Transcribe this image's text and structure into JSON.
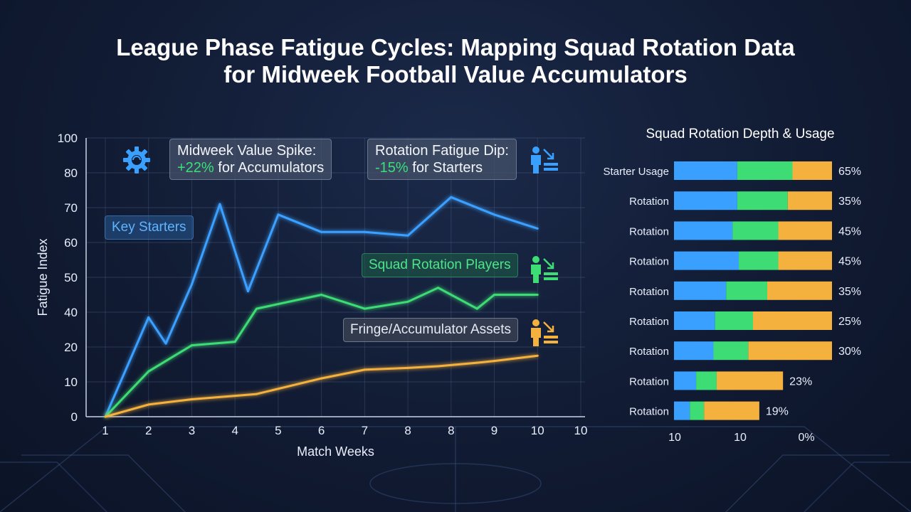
{
  "title_line1": "League Phase Fatigue Cycles: Mapping Squad Rotation Data",
  "title_line2": "for Midweek Football Value Accumulators",
  "colors": {
    "starters": "#3aa0ff",
    "rotation": "#3ddc74",
    "fringe": "#f5b13d",
    "background": "#111b33"
  },
  "callouts": {
    "spike_line1": "Midweek Value Spike:",
    "spike_value": "+22%",
    "spike_rest": " for Accumulators",
    "dip_line1": "Rotation Fatigue Dip:",
    "dip_value": "-15%",
    "dip_rest": " for Starters"
  },
  "icons": {
    "gear": "gear-icon",
    "starter_player": "player-down-arrow-icon",
    "rotation_player": "player-down-arrow-icon",
    "fringe_player": "player-down-arrow-icon"
  },
  "chart_data": [
    {
      "type": "line",
      "title": "",
      "xlabel": "Match Weeks",
      "ylabel": "Fatigue Index",
      "ylim": [
        0,
        100
      ],
      "y_ticks": [
        0,
        10,
        20,
        40,
        50,
        60,
        70,
        80,
        100
      ],
      "x_tick_labels": [
        "1",
        "2",
        "3",
        "4",
        "5",
        "6",
        "7",
        "8",
        "8",
        "9",
        "10",
        "10"
      ],
      "grid": true,
      "series": [
        {
          "name": "Key Starters",
          "color": "#3aa0ff",
          "points": [
            [
              1,
              0
            ],
            [
              2,
              37
            ],
            [
              2.4,
              22
            ],
            [
              3,
              48
            ],
            [
              3.65,
              71
            ],
            [
              4.3,
              46
            ],
            [
              5,
              68
            ],
            [
              6,
              63
            ],
            [
              7,
              63
            ],
            [
              8,
              62
            ],
            [
              9,
              73
            ],
            [
              10,
              68
            ],
            [
              11,
              64
            ]
          ]
        },
        {
          "name": "Squad Rotation Players",
          "color": "#3ddc74",
          "points": [
            [
              1,
              0
            ],
            [
              2,
              13
            ],
            [
              3,
              21
            ],
            [
              4,
              23
            ],
            [
              4.5,
              41
            ],
            [
              6,
              45
            ],
            [
              7,
              41
            ],
            [
              8,
              43
            ],
            [
              8.7,
              47
            ],
            [
              9.6,
              41
            ],
            [
              10,
              45
            ],
            [
              11,
              45
            ]
          ]
        },
        {
          "name": "Fringe/Accumulator Assets",
          "color": "#f5b13d",
          "points": [
            [
              1,
              0
            ],
            [
              2,
              3.5
            ],
            [
              3,
              5
            ],
            [
              4,
              6
            ],
            [
              4.5,
              6.5
            ],
            [
              6,
              11
            ],
            [
              7,
              13.5
            ],
            [
              8,
              14
            ],
            [
              8.7,
              14.5
            ],
            [
              9.6,
              15.5
            ],
            [
              10,
              16
            ],
            [
              11,
              17.5
            ]
          ]
        }
      ]
    },
    {
      "type": "bar",
      "orientation": "horizontal",
      "stacked": true,
      "title": "Squad Rotation Depth & Usage",
      "x_tick_labels": [
        "10",
        "10",
        "0%"
      ],
      "categories": [
        "Starter Usage",
        "Rotation",
        "Rotation",
        "Rotation",
        "Rotation",
        "Rotation",
        "Rotation",
        "Rotation",
        "Rotation"
      ],
      "value_labels": [
        "65%",
        "35%",
        "45%",
        "45%",
        "35%",
        "25%",
        "30%",
        "23%",
        "19%"
      ],
      "segment_colors": [
        "#3aa0ff",
        "#3ddc74",
        "#f5b13d"
      ],
      "segments": [
        [
          40,
          35,
          25
        ],
        [
          40,
          32,
          28
        ],
        [
          37,
          29,
          34
        ],
        [
          41,
          25,
          34
        ],
        [
          33,
          26,
          41
        ],
        [
          26,
          24,
          50
        ],
        [
          25,
          22,
          53
        ],
        [
          14,
          13,
          42
        ],
        [
          10,
          9,
          35
        ]
      ],
      "xlim": [
        0,
        100
      ]
    }
  ]
}
